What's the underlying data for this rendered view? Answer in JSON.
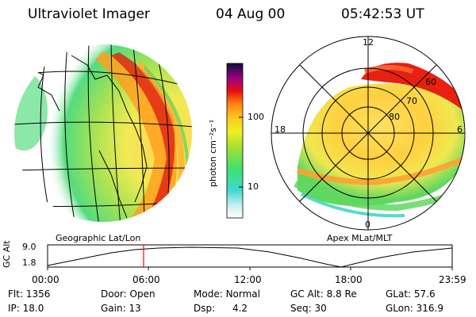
{
  "header": {
    "title": "Ultraviolet Imager",
    "date": "04 Aug 00",
    "time": "05:42:53 UT"
  },
  "colorbar": {
    "unit_label": "photon cm⁻²s⁻¹",
    "ticks": [
      "100",
      "10"
    ]
  },
  "panels": {
    "left_label": "Geographic Lat/Lon",
    "right_label": "Apex MLat/MLT"
  },
  "polar": {
    "mlt_labels": [
      "12",
      "18",
      "6",
      "0"
    ],
    "mlat_labels": [
      "60",
      "70",
      "80"
    ]
  },
  "altitude_plot": {
    "ylabel": "GC Alt",
    "yticks": [
      "9.0",
      "1.8"
    ],
    "xticks": [
      "00:00",
      "06:00",
      "12:00",
      "18:00",
      "23:59"
    ],
    "current_time_marker": "05:42:53"
  },
  "info": {
    "row1": [
      {
        "label": "Flt:",
        "value": "1356"
      },
      {
        "label": "Door:",
        "value": "Open"
      },
      {
        "label": "Mode:",
        "value": "Normal"
      },
      {
        "label": "GC Alt:",
        "value": "8.8 Re"
      },
      {
        "label": "GLat:",
        "value": "57.6"
      }
    ],
    "row2": [
      {
        "label": "IP:",
        "value": "18.0"
      },
      {
        "label": "Gain:",
        "value": "13"
      },
      {
        "label": "Dsp:",
        "value": "4.2"
      },
      {
        "label": "Seq:",
        "value": "30"
      },
      {
        "label": "GLon:",
        "value": "316.9"
      }
    ]
  },
  "colors": {
    "bg": "#ffffff",
    "grid": "#000000",
    "marker": "#ff0000"
  }
}
